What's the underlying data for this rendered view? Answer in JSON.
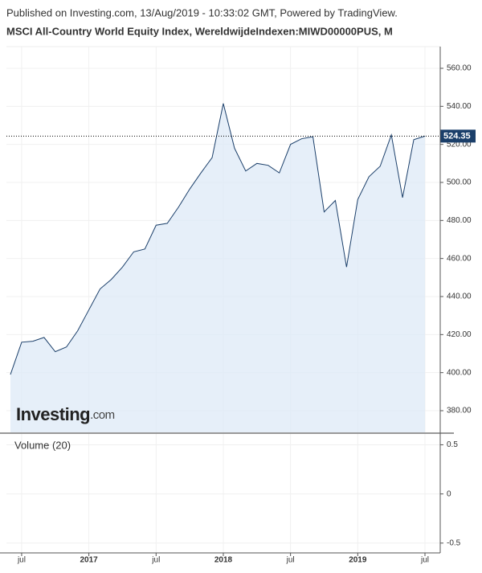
{
  "header": {
    "published": "Published on Investing.com, 13/Aug/2019 - 10:33:02 GMT, Powered by TradingView.",
    "title": "MSCI All-Country World Equity Index, WereldwijdeIndexen:MIWD00000PUS, M"
  },
  "watermark": {
    "brand": "Investing",
    "domain": ".com"
  },
  "chart_data": [
    {
      "type": "area",
      "x": [
        "2016-06",
        "2016-07",
        "2016-08",
        "2016-09",
        "2016-10",
        "2016-11",
        "2016-12",
        "2017-01",
        "2017-02",
        "2017-03",
        "2017-04",
        "2017-05",
        "2017-06",
        "2017-07",
        "2017-08",
        "2017-09",
        "2017-10",
        "2017-11",
        "2017-12",
        "2018-01",
        "2018-02",
        "2018-03",
        "2018-04",
        "2018-05",
        "2018-06",
        "2018-07",
        "2018-08",
        "2018-09",
        "2018-10",
        "2018-11",
        "2018-12",
        "2019-01",
        "2019-02",
        "2019-03",
        "2019-04",
        "2019-05",
        "2019-06",
        "2019-07"
      ],
      "series": [
        {
          "color": "#1b3f6a",
          "values": [
            399,
            416,
            416.5,
            418.5,
            411,
            413.5,
            422,
            433,
            444,
            449,
            455.5,
            463.5,
            465,
            477.5,
            478.5,
            487,
            496.5,
            505,
            513,
            541.5,
            518,
            506,
            510,
            509,
            505,
            520,
            523,
            524,
            484.5,
            490.5,
            455.5,
            491,
            503,
            508.5,
            525,
            492,
            522.5,
            524.35
          ]
        }
      ],
      "fill": "#dde9f7",
      "xlim": [
        "2016-06",
        "2019-07"
      ],
      "xticks": [
        {
          "value": "2016-07",
          "label": "jul"
        },
        {
          "value": "2017-01",
          "label": "2017"
        },
        {
          "value": "2017-07",
          "label": "jul"
        },
        {
          "value": "2018-01",
          "label": "2018"
        },
        {
          "value": "2018-07",
          "label": "jul"
        },
        {
          "value": "2019-01",
          "label": "2019"
        },
        {
          "value": "2019-07",
          "label": "jul"
        }
      ],
      "ylim": [
        368.6,
        571.4
      ],
      "yticks": [
        {
          "value": 380,
          "label": "380.00"
        },
        {
          "value": 400,
          "label": "400.00"
        },
        {
          "value": 420,
          "label": "420.00"
        },
        {
          "value": 440,
          "label": "440.00"
        },
        {
          "value": 460,
          "label": "460.00"
        },
        {
          "value": 480,
          "label": "480.00"
        },
        {
          "value": 500,
          "label": "500.00"
        },
        {
          "value": 520,
          "label": "520.00"
        },
        {
          "value": 540,
          "label": "540.00"
        },
        {
          "value": 560,
          "label": "560.00"
        }
      ],
      "grid": true
    },
    {
      "type": "volume",
      "title": "Volume (20)",
      "ylim": [
        -0.6,
        0.61
      ],
      "yticks": [
        -0.5,
        0,
        0.5
      ],
      "grid": true
    }
  ]
}
